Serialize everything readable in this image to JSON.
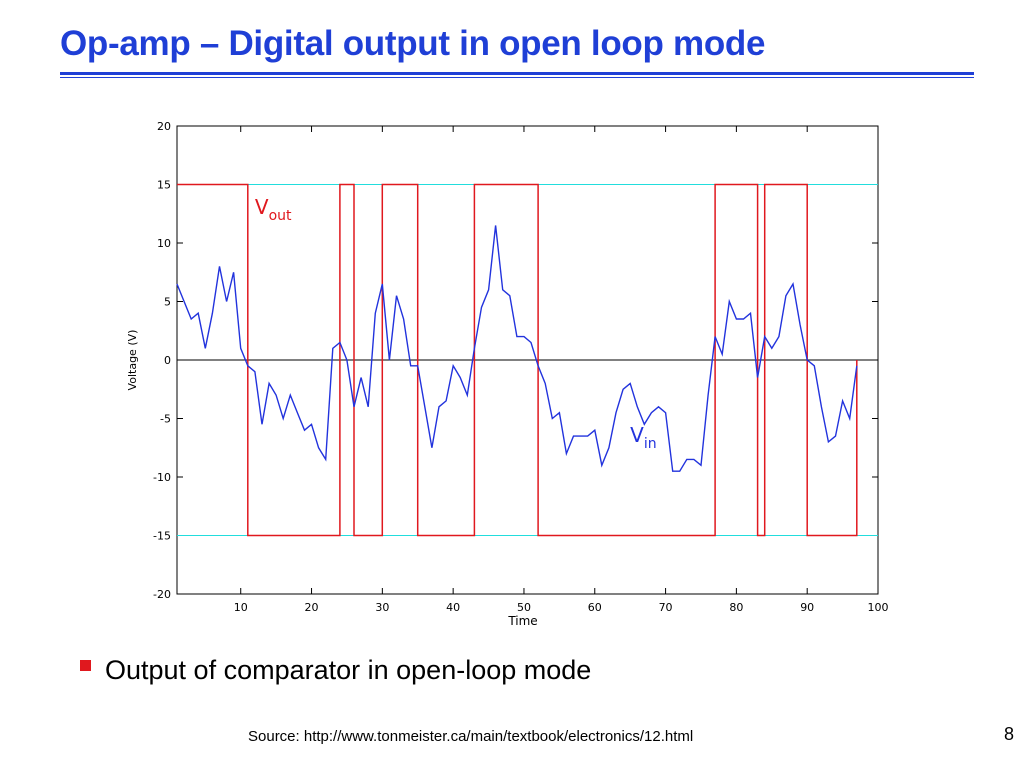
{
  "slide": {
    "title": "Op-amp – Digital output in open loop mode",
    "bullet": "Output of comparator in open-loop mode",
    "source": "Source: http://www.tonmeister.ca/main/textbook/electronics/12.html",
    "page_number": "8"
  },
  "colors": {
    "title": "#1f3fd6",
    "vout": "#e0181e",
    "vin": "#2233dd",
    "reference_lines": "#22dddd",
    "bullet": "#e0181e"
  },
  "chart_data": {
    "type": "line",
    "xlabel": "Time",
    "ylabel": "Voltage (V)",
    "xlim": [
      1,
      100
    ],
    "ylim": [
      -20,
      20
    ],
    "x_ticks": [
      10,
      20,
      30,
      40,
      50,
      60,
      70,
      80,
      90,
      100
    ],
    "y_ticks": [
      -20,
      -15,
      -10,
      -5,
      0,
      5,
      10,
      15,
      20
    ],
    "grid": false,
    "reference_lines": [
      15,
      -15,
      0
    ],
    "annotations": [
      {
        "main": "V",
        "sub": "out",
        "series": "Vout",
        "x": 12,
        "y": 12.5
      },
      {
        "main": "V",
        "sub": "in",
        "series": "Vin",
        "x": 65,
        "y": -7
      }
    ],
    "series": [
      {
        "name": "Vout",
        "step": true,
        "x": [
          1,
          11,
          11,
          24,
          24,
          26,
          26,
          30,
          30,
          35,
          35,
          43,
          43,
          52,
          52,
          77,
          77,
          83,
          83,
          84,
          84,
          90,
          90,
          97,
          97
        ],
        "y": [
          15,
          15,
          -15,
          -15,
          15,
          15,
          -15,
          -15,
          15,
          15,
          -15,
          -15,
          15,
          15,
          -15,
          -15,
          15,
          15,
          -15,
          -15,
          15,
          15,
          -15,
          -15,
          0
        ]
      },
      {
        "name": "Vin",
        "step": false,
        "x": [
          1,
          2,
          3,
          4,
          5,
          6,
          7,
          8,
          9,
          10,
          11,
          12,
          13,
          14,
          15,
          16,
          17,
          18,
          19,
          20,
          21,
          22,
          23,
          24,
          25,
          26,
          27,
          28,
          29,
          30,
          31,
          32,
          33,
          34,
          35,
          36,
          37,
          38,
          39,
          40,
          41,
          42,
          43,
          44,
          45,
          46,
          47,
          48,
          49,
          50,
          51,
          52,
          53,
          54,
          55,
          56,
          57,
          58,
          59,
          60,
          61,
          62,
          63,
          64,
          65,
          66,
          67,
          68,
          69,
          70,
          71,
          72,
          73,
          74,
          75,
          76,
          77,
          78,
          79,
          80,
          81,
          82,
          83,
          84,
          85,
          86,
          87,
          88,
          89,
          90,
          91,
          92,
          93,
          94,
          95,
          96,
          97
        ],
        "y": [
          6.5,
          5,
          3.5,
          4,
          1,
          4,
          8,
          5,
          7.5,
          1,
          -0.5,
          -1,
          -5.5,
          -2,
          -3,
          -5,
          -3,
          -4.5,
          -6,
          -5.5,
          -7.5,
          -8.5,
          1,
          1.5,
          0,
          -4,
          -1.5,
          -4,
          4,
          6.5,
          0,
          5.5,
          3.5,
          -0.5,
          -0.5,
          -4,
          -7.5,
          -4,
          -3.5,
          -0.5,
          -1.5,
          -3,
          1,
          4.5,
          6,
          11.5,
          6,
          5.5,
          2,
          2,
          1.5,
          -0.5,
          -2,
          -5,
          -4.5,
          -8,
          -6.5,
          -6.5,
          -6.5,
          -6,
          -9,
          -7.5,
          -4.5,
          -2.5,
          -2,
          -4,
          -5.5,
          -4.5,
          -4,
          -4.5,
          -9.5,
          -9.5,
          -8.5,
          -8.5,
          -9,
          -3,
          2,
          0.5,
          5,
          3.5,
          3.5,
          4,
          -1.5,
          2,
          1,
          2,
          5.5,
          6.5,
          3,
          0,
          -0.5,
          -4,
          -7,
          -6.5,
          -3.5,
          -5,
          -0.5
        ]
      }
    ]
  }
}
